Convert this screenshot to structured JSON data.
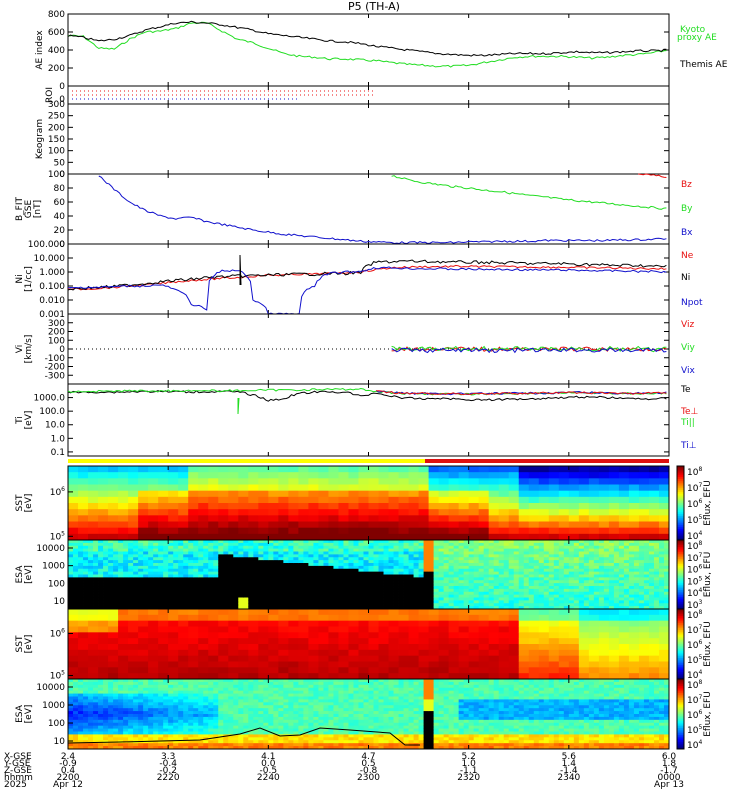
{
  "title": "P5 (TH-A)",
  "colors": {
    "black": "#000000",
    "green": "#22dd22",
    "red": "#e81010",
    "blue": "#1010cc",
    "bar_yellow": "#ffff00",
    "bar_red": "#dd1010"
  },
  "colorbar_label": "Eflux, EFU",
  "colorbar_ticks": [
    "10^8",
    "10^7",
    "10^6",
    "10^5",
    "10^4",
    "10^3"
  ],
  "chart_data": [
    {
      "id": "ae",
      "type": "line",
      "ylabel": "AE index",
      "ylim": [
        0,
        800
      ],
      "yticks": [
        "800",
        "600",
        "400",
        "200",
        "0"
      ],
      "series": [
        {
          "name": "Kyoto proxy AE",
          "color": "green",
          "values": [
            560,
            550,
            420,
            410,
            520,
            600,
            610,
            640,
            700,
            700,
            610,
            520,
            480,
            420,
            360,
            330,
            320,
            300,
            300,
            290,
            280,
            260,
            240,
            230,
            220,
            220,
            230,
            260,
            290,
            320,
            330,
            330,
            330,
            320,
            310,
            320,
            340,
            350,
            370,
            400
          ]
        },
        {
          "name": "Themis AE",
          "color": "black",
          "values": [
            560,
            540,
            500,
            520,
            560,
            620,
            660,
            700,
            710,
            700,
            680,
            650,
            620,
            580,
            560,
            540,
            520,
            500,
            490,
            470,
            440,
            420,
            400,
            380,
            360,
            350,
            340,
            340,
            350,
            360,
            360,
            360,
            370,
            380,
            370,
            370,
            380,
            390,
            390,
            400
          ]
        }
      ],
      "legend_labels": [
        "Kyoto",
        "proxy AE",
        "Themis AE"
      ]
    },
    {
      "id": "roi",
      "type": "scatter",
      "ylabel": "ROI",
      "yticks": [
        "0"
      ]
    },
    {
      "id": "keogram",
      "type": "heatmap",
      "ylabel": "Keogram",
      "ylim": [
        0,
        300
      ],
      "yticks": [
        "300",
        "250",
        "200",
        "150",
        "100",
        "50",
        "0"
      ]
    },
    {
      "id": "bfit",
      "type": "line",
      "ylabel_lines": [
        "B_FIT",
        "GSE",
        "[nT]"
      ],
      "ylim": [
        0,
        100
      ],
      "yticks": [
        "100",
        "80",
        "60",
        "40",
        "20",
        "0"
      ],
      "legend_labels": [
        "Bz",
        "By",
        "Bx"
      ],
      "series": [
        {
          "name": "Bz",
          "color": "red",
          "values": [
            null,
            null,
            null,
            null,
            null,
            null,
            null,
            null,
            null,
            null,
            null,
            null,
            null,
            null,
            null,
            null,
            null,
            null,
            null,
            null,
            null,
            null,
            null,
            null,
            null,
            null,
            null,
            null,
            null,
            null,
            null,
            null,
            null,
            null,
            null,
            null,
            null,
            100,
            98,
            95
          ]
        },
        {
          "name": "By",
          "color": "green",
          "values": [
            null,
            null,
            null,
            null,
            null,
            null,
            null,
            null,
            null,
            null,
            null,
            null,
            null,
            null,
            null,
            null,
            null,
            null,
            null,
            null,
            null,
            98,
            92,
            88,
            85,
            82,
            80,
            77,
            75,
            72,
            69,
            67,
            64,
            62,
            60,
            58,
            56,
            54,
            52,
            50
          ]
        },
        {
          "name": "Bx",
          "color": "blue",
          "values": [
            null,
            null,
            98,
            78,
            60,
            48,
            40,
            36,
            38,
            32,
            28,
            24,
            20,
            17,
            14,
            12,
            10,
            8,
            6,
            4,
            3,
            2,
            2,
            2,
            2,
            2,
            3,
            3,
            4,
            4,
            4,
            5,
            5,
            5,
            5,
            5,
            6,
            6,
            7,
            8
          ]
        }
      ]
    },
    {
      "id": "ni",
      "type": "line",
      "ylabel_lines": [
        "Ni",
        "[1/cc]"
      ],
      "ylim_log": [
        0.001,
        100
      ],
      "yticks": [
        "100.000",
        "10.000",
        "1.000",
        "0.100",
        "0.010",
        "0.001"
      ],
      "legend_labels": [
        "Ne",
        "Ni",
        "Npot"
      ],
      "series": [
        {
          "name": "Ne",
          "color": "red",
          "values": [
            0.06,
            0.06,
            0.07,
            0.08,
            0.1,
            0.12,
            0.15,
            0.2,
            0.25,
            0.3,
            0.35,
            0.4,
            0.5,
            0.6,
            0.6,
            0.7,
            0.7,
            0.8,
            0.9,
            1.0,
            1.5,
            2.0,
            2.2,
            2.4,
            2.4,
            2.5,
            2.5,
            2.4,
            2.4,
            2.3,
            2.3,
            2.2,
            2.2,
            2.1,
            2.0,
            2.0,
            1.9,
            1.8,
            1.8,
            1.6
          ]
        },
        {
          "name": "Ni",
          "color": "black",
          "values": [
            0.06,
            0.07,
            0.08,
            0.09,
            0.12,
            0.15,
            0.2,
            0.25,
            0.3,
            0.4,
            0.45,
            0.5,
            0.55,
            0.6,
            0.65,
            0.7,
            0.7,
            0.8,
            0.8,
            0.9,
            5,
            5.5,
            6,
            5.5,
            5.5,
            5,
            5,
            5,
            4.5,
            4.5,
            4,
            4,
            4,
            3.5,
            3.5,
            3,
            3,
            3,
            2.5,
            2.5
          ]
        },
        {
          "name": "Npot",
          "color": "blue",
          "values": [
            0.07,
            0.08,
            0.08,
            0.09,
            0.1,
            0.1,
            0.12,
            0.05,
            0.005,
            0.002,
            1.2,
            1.3,
            0.01,
            0.001,
            0.001,
            0.001,
            0.1,
            0.8,
            1.0,
            1.1,
            2.0,
            2.0,
            1.8,
            1.7,
            1.7,
            1.6,
            1.6,
            1.5,
            1.5,
            1.5,
            1.4,
            1.4,
            1.4,
            1.3,
            1.3,
            1.2,
            1.2,
            1.1,
            1.1,
            1.0
          ]
        }
      ]
    },
    {
      "id": "vi",
      "type": "line",
      "ylabel_lines": [
        "Vi",
        "[km/s]"
      ],
      "ylim": [
        -400,
        400
      ],
      "yticks": [
        "300",
        "200",
        "100",
        "0",
        "-100",
        "-200",
        "-300"
      ],
      "legend_labels": [
        "Viz",
        "Viy",
        "Vix"
      ],
      "series": [
        {
          "name": "Viz",
          "color": "red",
          "values": [
            null,
            null,
            null,
            null,
            null,
            null,
            null,
            null,
            null,
            null,
            null,
            null,
            null,
            null,
            null,
            null,
            null,
            null,
            null,
            null,
            null,
            -5,
            5,
            -8,
            6,
            -4,
            7,
            -6,
            3,
            -5,
            8,
            -7,
            4,
            -3,
            6,
            -5,
            3,
            -4,
            5,
            -2
          ]
        },
        {
          "name": "Viy",
          "color": "green",
          "values": [
            null,
            null,
            null,
            null,
            null,
            null,
            null,
            null,
            null,
            null,
            null,
            null,
            null,
            null,
            null,
            null,
            null,
            null,
            null,
            null,
            null,
            10,
            -12,
            8,
            -10,
            12,
            -8,
            10,
            -15,
            9,
            -11,
            7,
            -9,
            12,
            -7,
            10,
            -8,
            6,
            -10,
            8
          ]
        },
        {
          "name": "Vix",
          "color": "blue",
          "values": [
            null,
            null,
            null,
            null,
            null,
            null,
            null,
            null,
            null,
            null,
            null,
            null,
            null,
            null,
            null,
            null,
            null,
            null,
            null,
            null,
            null,
            -10,
            -15,
            -20,
            -12,
            -18,
            -10,
            -14,
            -20,
            -16,
            -12,
            -18,
            -14,
            -10,
            -16,
            -12,
            -18,
            -15,
            -10,
            -12
          ]
        }
      ]
    },
    {
      "id": "ti",
      "type": "line",
      "ylabel_lines": [
        "Ti",
        "[eV]"
      ],
      "ylim_log": [
        0.05,
        10000
      ],
      "yticks": [
        "1000.0",
        "100.0",
        "10.0",
        "1.0",
        "0.1"
      ],
      "legend_labels": [
        "Te",
        "Te⊥",
        "Ti||",
        "Ti⊥"
      ],
      "series": [
        {
          "name": "Te",
          "color": "black",
          "values": [
            2500,
            2400,
            2600,
            2500,
            2700,
            2800,
            2800,
            2700,
            2600,
            2700,
            2800,
            2600,
            1500,
            600,
            800,
            2000,
            2500,
            2600,
            2500,
            1200,
            2200,
            1200,
            900,
            800,
            900,
            800,
            700,
            700,
            700,
            800,
            800,
            900,
            1000,
            1100,
            1100,
            1000,
            900,
            800,
            800,
            900
          ]
        },
        {
          "name": "Ti||",
          "color": "green",
          "values": [
            2800,
            2800,
            2900,
            3000,
            3100,
            3100,
            3000,
            3200,
            3300,
            3200,
            3100,
            3300,
            3400,
            3500,
            3600,
            3800,
            3900,
            4000,
            4100,
            4200,
            2800,
            2300,
            2000,
            1900,
            1900,
            1800,
            1800,
            1900,
            1900,
            2000,
            2000,
            2100,
            2200,
            2300,
            2200,
            2100,
            2000,
            2000,
            2000,
            2100
          ]
        },
        {
          "name": "Ti⊥",
          "color": "blue",
          "values": [
            null,
            null,
            null,
            null,
            null,
            null,
            null,
            null,
            null,
            null,
            null,
            null,
            null,
            null,
            null,
            null,
            null,
            null,
            null,
            null,
            2900,
            2400,
            2100,
            2000,
            2000,
            1900,
            1900,
            2000,
            2000,
            2100,
            2100,
            2200,
            2300,
            2400,
            2300,
            2200,
            2100,
            2100,
            2100,
            2200
          ]
        },
        {
          "name": "Te⊥",
          "color": "red",
          "values": [
            null,
            null,
            null,
            null,
            null,
            null,
            null,
            null,
            null,
            null,
            null,
            null,
            null,
            null,
            null,
            null,
            null,
            null,
            null,
            null,
            2800,
            2300,
            2100,
            2000,
            2000,
            1900,
            1900,
            2000,
            2000,
            2000,
            2100,
            2200,
            2200,
            2300,
            2200,
            2100,
            2100,
            2000,
            2100,
            2200
          ]
        }
      ]
    },
    {
      "id": "sst_i",
      "type": "heatmap",
      "ylabel_lines": [
        "SST",
        "[eV]"
      ],
      "yticks": [
        "10^6",
        "10^5"
      ]
    },
    {
      "id": "esa_i",
      "type": "heatmap",
      "ylabel_lines": [
        "ESA",
        "[eV]"
      ],
      "yticks": [
        "10000",
        "1000",
        "100",
        "10"
      ]
    },
    {
      "id": "sst_e",
      "type": "heatmap",
      "ylabel_lines": [
        "SST",
        "[eV]"
      ],
      "yticks": [
        "10^6",
        "10^5"
      ]
    },
    {
      "id": "esa_e",
      "type": "heatmap",
      "ylabel_lines": [
        "ESA",
        "[eV]"
      ],
      "yticks": [
        "10000",
        "1000",
        "100",
        "10"
      ]
    }
  ],
  "xaxis": {
    "row_labels": [
      "X-GSE",
      "Y-GSE",
      "Z-GSE",
      "hhmm",
      "2025"
    ],
    "columns": [
      {
        "values": [
          "2.4",
          "-0.9",
          "0.4",
          "2200",
          "Apr 12"
        ]
      },
      {
        "values": [
          "3.3",
          "-0.4",
          "-0.2",
          "2220",
          ""
        ]
      },
      {
        "values": [
          "4.1",
          "0.0",
          "-0.5",
          "2240",
          ""
        ]
      },
      {
        "values": [
          "4.7",
          "0.5",
          "-0.8",
          "2300",
          ""
        ]
      },
      {
        "values": [
          "5.2",
          "1.0",
          "-1.1",
          "2320",
          ""
        ]
      },
      {
        "values": [
          "5.6",
          "1.4",
          "-1.4",
          "2340",
          ""
        ]
      },
      {
        "values": [
          "6.0",
          "1.8",
          "-1.7",
          "0000",
          "Apr 13"
        ]
      }
    ]
  }
}
